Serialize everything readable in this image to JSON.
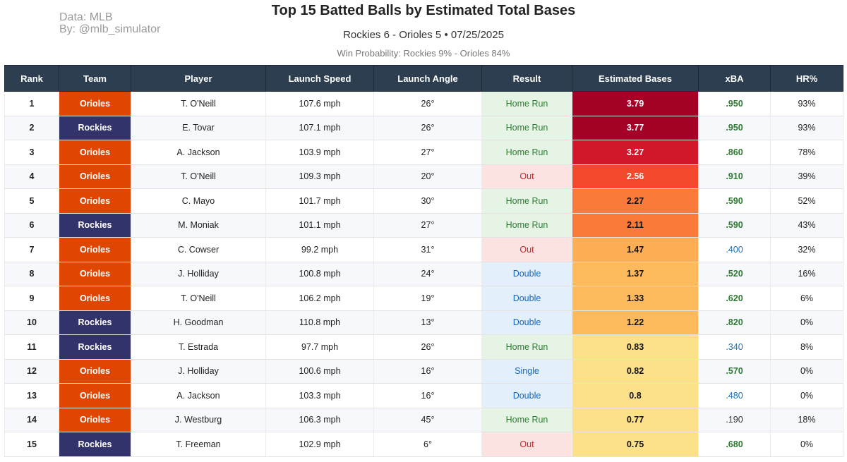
{
  "header": {
    "credit_source": "Data: MLB",
    "credit_by": "By: @mlb_simulator",
    "title": "Top 15 Batted Balls by Estimated Total Bases",
    "subtitle": "Rockies 6 - Orioles 5  •  07/25/2025",
    "win_probability": "Win Probability: Rockies 9% - Orioles 84%"
  },
  "colors": {
    "orioles": "#df4601",
    "rockies": "#33336b",
    "header_bg": "#2c3e50"
  },
  "chart_data": {
    "type": "table",
    "title": "Top 15 Batted Balls by Estimated Total Bases",
    "columns": [
      "Rank",
      "Team",
      "Player",
      "Launch Speed",
      "Launch Angle",
      "Result",
      "Estimated Bases",
      "xBA",
      "HR%"
    ],
    "rows": [
      {
        "rank": "1",
        "team": "Orioles",
        "player": "T. O'Neill",
        "launch_speed": "107.6 mph",
        "launch_angle": "26°",
        "result": "Home Run",
        "est_bases": "3.79",
        "xba": ".950",
        "hr_pct": "93%"
      },
      {
        "rank": "2",
        "team": "Rockies",
        "player": "E. Tovar",
        "launch_speed": "107.1 mph",
        "launch_angle": "26°",
        "result": "Home Run",
        "est_bases": "3.77",
        "xba": ".950",
        "hr_pct": "93%"
      },
      {
        "rank": "3",
        "team": "Orioles",
        "player": "A. Jackson",
        "launch_speed": "103.9 mph",
        "launch_angle": "27°",
        "result": "Home Run",
        "est_bases": "3.27",
        "xba": ".860",
        "hr_pct": "78%"
      },
      {
        "rank": "4",
        "team": "Orioles",
        "player": "T. O'Neill",
        "launch_speed": "109.3 mph",
        "launch_angle": "20°",
        "result": "Out",
        "est_bases": "2.56",
        "xba": ".910",
        "hr_pct": "39%"
      },
      {
        "rank": "5",
        "team": "Orioles",
        "player": "C. Mayo",
        "launch_speed": "101.7 mph",
        "launch_angle": "30°",
        "result": "Home Run",
        "est_bases": "2.27",
        "xba": ".590",
        "hr_pct": "52%"
      },
      {
        "rank": "6",
        "team": "Rockies",
        "player": "M. Moniak",
        "launch_speed": "101.1 mph",
        "launch_angle": "27°",
        "result": "Home Run",
        "est_bases": "2.11",
        "xba": ".590",
        "hr_pct": "43%"
      },
      {
        "rank": "7",
        "team": "Orioles",
        "player": "C. Cowser",
        "launch_speed": "99.2 mph",
        "launch_angle": "31°",
        "result": "Out",
        "est_bases": "1.47",
        "xba": ".400",
        "hr_pct": "32%"
      },
      {
        "rank": "8",
        "team": "Orioles",
        "player": "J. Holliday",
        "launch_speed": "100.8 mph",
        "launch_angle": "24°",
        "result": "Double",
        "est_bases": "1.37",
        "xba": ".520",
        "hr_pct": "16%"
      },
      {
        "rank": "9",
        "team": "Orioles",
        "player": "T. O'Neill",
        "launch_speed": "106.2 mph",
        "launch_angle": "19°",
        "result": "Double",
        "est_bases": "1.33",
        "xba": ".620",
        "hr_pct": "6%"
      },
      {
        "rank": "10",
        "team": "Rockies",
        "player": "H. Goodman",
        "launch_speed": "110.8 mph",
        "launch_angle": "13°",
        "result": "Double",
        "est_bases": "1.22",
        "xba": ".820",
        "hr_pct": "0%"
      },
      {
        "rank": "11",
        "team": "Rockies",
        "player": "T. Estrada",
        "launch_speed": "97.7 mph",
        "launch_angle": "26°",
        "result": "Home Run",
        "est_bases": "0.83",
        "xba": ".340",
        "hr_pct": "8%"
      },
      {
        "rank": "12",
        "team": "Orioles",
        "player": "J. Holliday",
        "launch_speed": "100.6 mph",
        "launch_angle": "16°",
        "result": "Single",
        "est_bases": "0.82",
        "xba": ".570",
        "hr_pct": "0%"
      },
      {
        "rank": "13",
        "team": "Orioles",
        "player": "A. Jackson",
        "launch_speed": "103.3 mph",
        "launch_angle": "16°",
        "result": "Double",
        "est_bases": "0.8",
        "xba": ".480",
        "hr_pct": "0%"
      },
      {
        "rank": "14",
        "team": "Orioles",
        "player": "J. Westburg",
        "launch_speed": "106.3 mph",
        "launch_angle": "45°",
        "result": "Home Run",
        "est_bases": "0.77",
        "xba": ".190",
        "hr_pct": "18%"
      },
      {
        "rank": "15",
        "team": "Rockies",
        "player": "T. Freeman",
        "launch_speed": "102.9 mph",
        "launch_angle": "6°",
        "result": "Out",
        "est_bases": "0.75",
        "xba": ".680",
        "hr_pct": "0%"
      }
    ]
  }
}
